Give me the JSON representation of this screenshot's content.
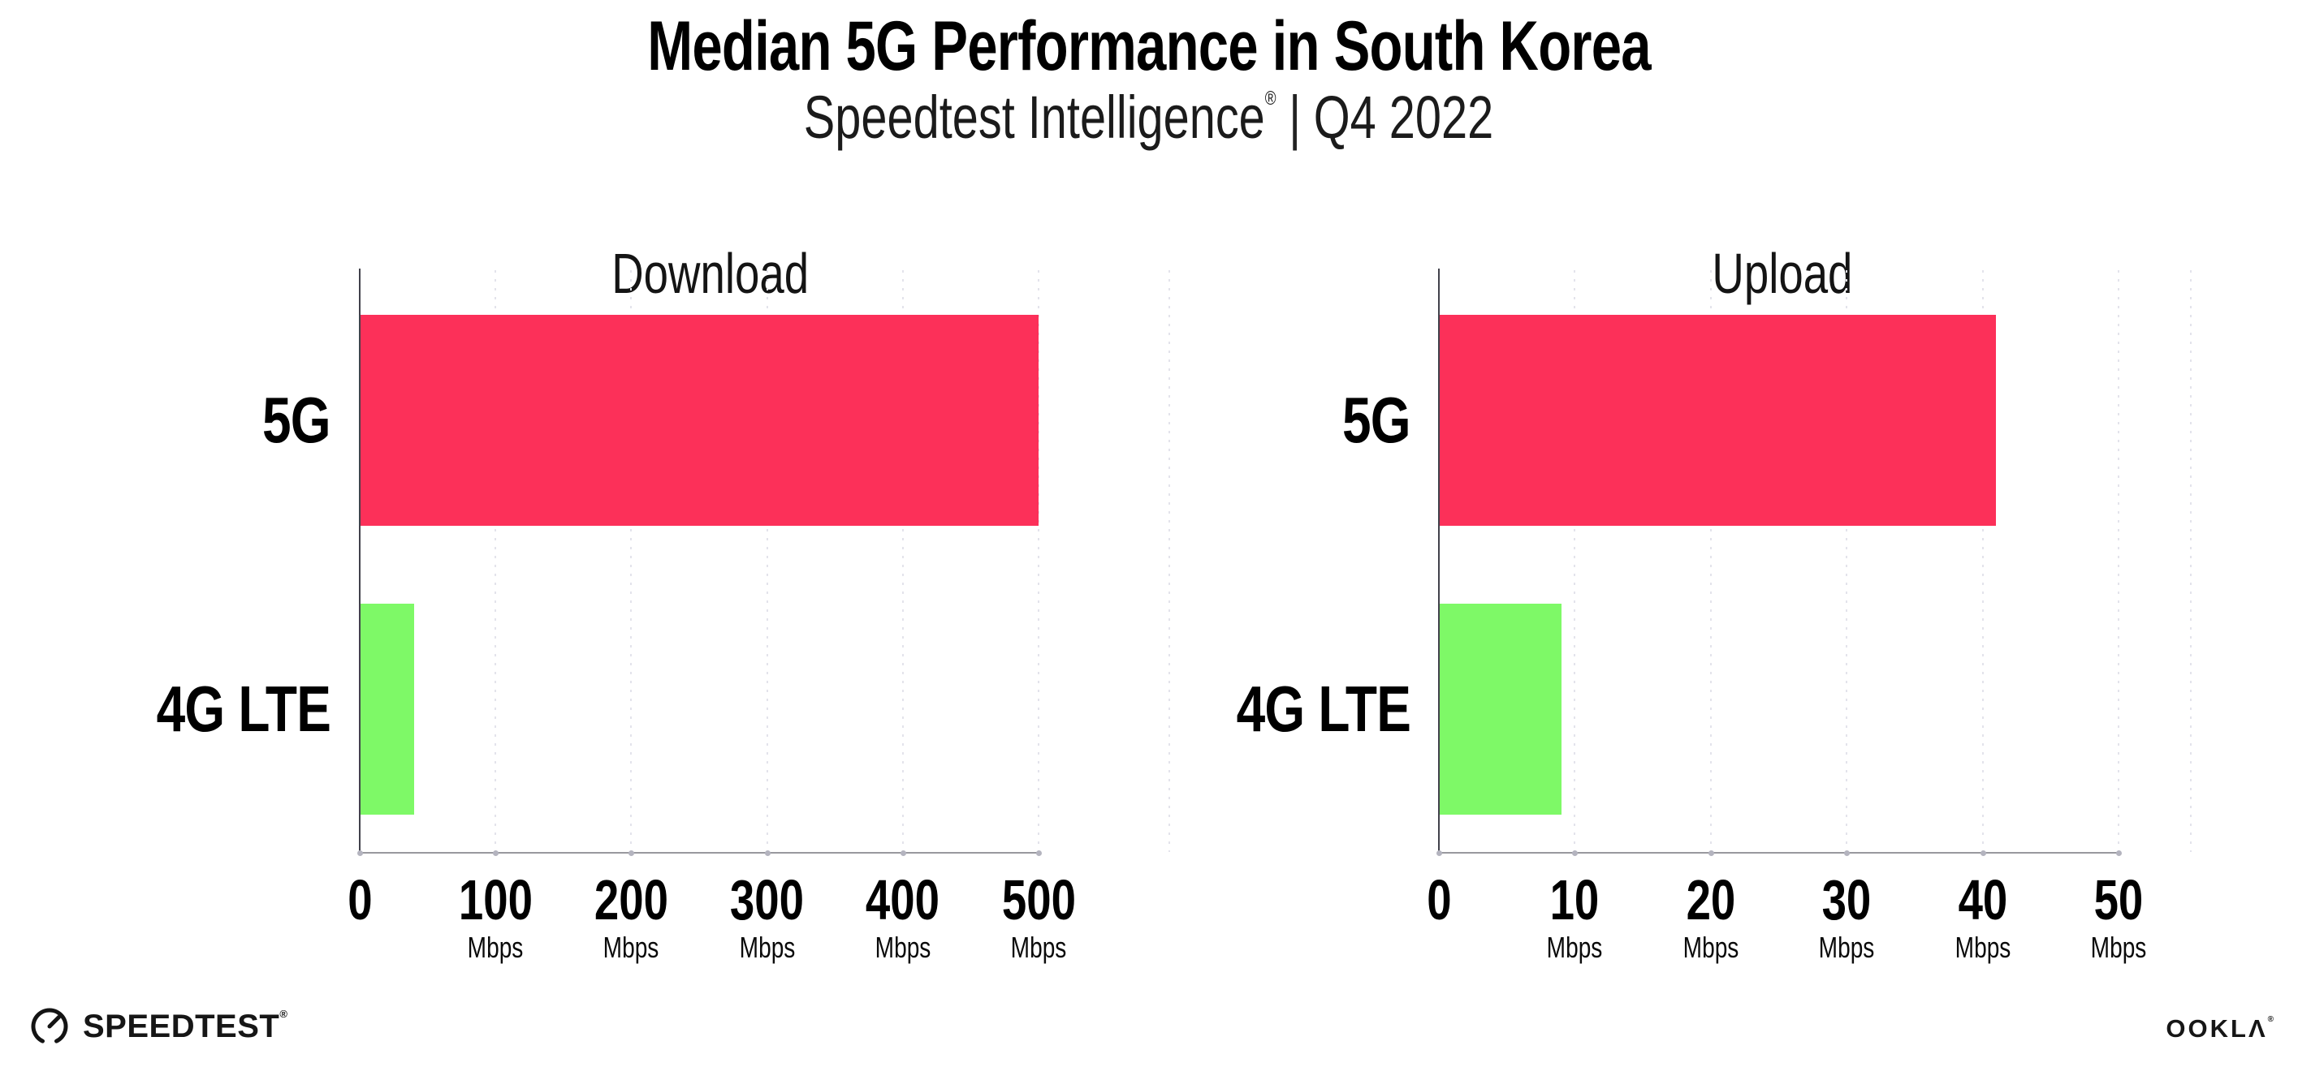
{
  "header": {
    "title": "Median 5G Performance in South Korea",
    "subtitle_brand": "Speedtest Intelligence",
    "reg_mark": "®",
    "separator": "|",
    "subtitle_period": "Q4 2022"
  },
  "chart_data": [
    {
      "type": "bar",
      "orientation": "horizontal",
      "title": "Download",
      "categories": [
        "5G",
        "4G LTE"
      ],
      "values": [
        500,
        40
      ],
      "unit": "Mbps",
      "xlim": [
        0,
        500
      ],
      "xticks": [
        0,
        100,
        200,
        300,
        400,
        500
      ],
      "xtick_labels": [
        "0",
        "100",
        "200",
        "300",
        "400",
        "500"
      ],
      "tick_unit_label": "Mbps",
      "bar_colors": [
        "#fc3059",
        "#7ef967"
      ],
      "grid": "dotted-vertical",
      "legend": "none"
    },
    {
      "type": "bar",
      "orientation": "horizontal",
      "title": "Upload",
      "categories": [
        "5G",
        "4G LTE"
      ],
      "values": [
        41,
        9
      ],
      "unit": "Mbps",
      "xlim": [
        0,
        50
      ],
      "xticks": [
        0,
        10,
        20,
        30,
        40,
        50
      ],
      "xtick_labels": [
        "0",
        "10",
        "20",
        "30",
        "40",
        "50"
      ],
      "tick_unit_label": "Mbps",
      "bar_colors": [
        "#fc3059",
        "#7ef967"
      ],
      "grid": "dotted-vertical",
      "legend": "none"
    }
  ],
  "colors": {
    "bar_5g": "#fc3059",
    "bar_4g_lte": "#7ef967",
    "gridline": "#e3e3eb",
    "axis_line": "#98989e",
    "y_axis_line": "#41414b",
    "text": "#000000"
  },
  "footer": {
    "speedtest_label": "SPEEDTEST",
    "speedtest_reg": "®",
    "ookla_label": "OOKLA",
    "ookla_reg": "®"
  }
}
